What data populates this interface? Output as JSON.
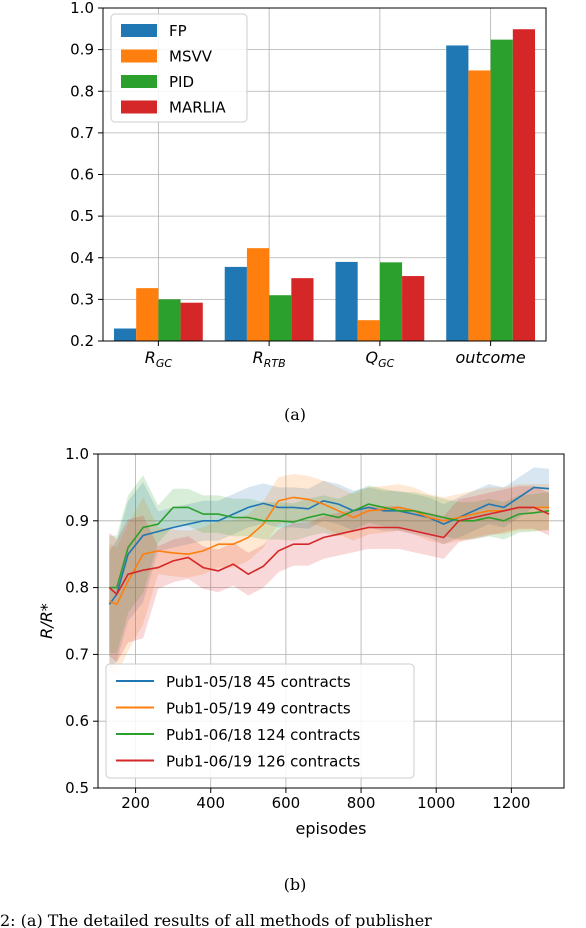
{
  "chart_data": [
    {
      "type": "bar",
      "categories": [
        "R_GC",
        "R_RTB",
        "Q_GC",
        "outcome"
      ],
      "category_labels": [
        {
          "base": "R",
          "sub": "GC"
        },
        {
          "base": "R",
          "sub": "RTB"
        },
        {
          "base": "Q",
          "sub": "GC"
        },
        {
          "base": "outcome",
          "sub": ""
        }
      ],
      "series": [
        {
          "name": "FP",
          "color": "#1f77b4",
          "values": [
            0.23,
            0.378,
            0.39,
            0.91
          ]
        },
        {
          "name": "MSVV",
          "color": "#ff7f0e",
          "values": [
            0.327,
            0.423,
            0.25,
            0.85
          ]
        },
        {
          "name": "PID",
          "color": "#2ca02c",
          "values": [
            0.3,
            0.31,
            0.389,
            0.924
          ]
        },
        {
          "name": "MARLIA",
          "color": "#d62728",
          "values": [
            0.292,
            0.351,
            0.356,
            0.949
          ]
        }
      ],
      "ylim": [
        0.2,
        1.0
      ],
      "yticks": [
        "0.2",
        "0.3",
        "0.4",
        "0.5",
        "0.6",
        "0.7",
        "0.8",
        "0.9",
        "1.0"
      ],
      "legend": "top-left",
      "grid": true,
      "caption": "(a)"
    },
    {
      "type": "line",
      "xlabel": "episodes",
      "ylabel": "R/R*",
      "xlim": [
        100,
        1340
      ],
      "ylim": [
        0.5,
        1.0
      ],
      "xticks": [
        "200",
        "400",
        "600",
        "800",
        "1000",
        "1200"
      ],
      "yticks": [
        "0.5",
        "0.6",
        "0.7",
        "0.8",
        "0.9",
        "1.0"
      ],
      "legend": "lower-left",
      "grid": true,
      "caption": "(b)",
      "series": [
        {
          "name": "Pub1-05/18 45 contracts",
          "color": "#1f77b4",
          "x": [
            130,
            150,
            180,
            220,
            260,
            300,
            340,
            380,
            420,
            460,
            500,
            540,
            580,
            620,
            660,
            700,
            740,
            780,
            820,
            860,
            900,
            940,
            980,
            1020,
            1060,
            1100,
            1140,
            1180,
            1220,
            1260,
            1300
          ],
          "y": [
            0.775,
            0.79,
            0.85,
            0.878,
            0.884,
            0.89,
            0.895,
            0.9,
            0.9,
            0.91,
            0.92,
            0.926,
            0.92,
            0.92,
            0.918,
            0.93,
            0.925,
            0.915,
            0.92,
            0.915,
            0.915,
            0.91,
            0.905,
            0.895,
            0.905,
            0.915,
            0.925,
            0.92,
            0.935,
            0.95,
            0.948
          ],
          "band": 0.03
        },
        {
          "name": "Pub1-05/19 49 contracts",
          "color": "#ff7f0e",
          "x": [
            130,
            150,
            180,
            220,
            260,
            300,
            340,
            380,
            420,
            460,
            500,
            540,
            580,
            620,
            660,
            700,
            740,
            780,
            820,
            860,
            900,
            940,
            980,
            1020,
            1060,
            1100,
            1140,
            1180,
            1220,
            1260,
            1300
          ],
          "y": [
            0.78,
            0.775,
            0.81,
            0.85,
            0.855,
            0.852,
            0.85,
            0.855,
            0.865,
            0.865,
            0.875,
            0.895,
            0.93,
            0.935,
            0.932,
            0.925,
            0.915,
            0.905,
            0.915,
            0.917,
            0.92,
            0.915,
            0.905,
            0.9,
            0.905,
            0.91,
            0.915,
            0.915,
            0.92,
            0.92,
            0.92
          ],
          "band": 0.035
        },
        {
          "name": "Pub1-06/18 124 contracts",
          "color": "#2ca02c",
          "x": [
            130,
            150,
            180,
            220,
            260,
            300,
            340,
            380,
            420,
            460,
            500,
            540,
            580,
            620,
            660,
            700,
            740,
            780,
            820,
            860,
            900,
            940,
            980,
            1020,
            1060,
            1100,
            1140,
            1180,
            1220,
            1260,
            1300
          ],
          "y": [
            0.8,
            0.8,
            0.86,
            0.89,
            0.895,
            0.92,
            0.92,
            0.91,
            0.91,
            0.905,
            0.905,
            0.9,
            0.9,
            0.898,
            0.905,
            0.91,
            0.905,
            0.915,
            0.925,
            0.92,
            0.915,
            0.915,
            0.91,
            0.905,
            0.9,
            0.9,
            0.905,
            0.9,
            0.91,
            0.912,
            0.915
          ],
          "band": 0.028
        },
        {
          "name": "Pub1-06/19 126 contracts",
          "color": "#d62728",
          "x": [
            130,
            150,
            180,
            220,
            260,
            300,
            340,
            380,
            420,
            460,
            500,
            540,
            580,
            620,
            660,
            700,
            740,
            780,
            820,
            860,
            900,
            940,
            980,
            1020,
            1060,
            1100,
            1140,
            1180,
            1220,
            1260,
            1300
          ],
          "y": [
            0.8,
            0.79,
            0.82,
            0.826,
            0.83,
            0.84,
            0.845,
            0.83,
            0.825,
            0.835,
            0.82,
            0.832,
            0.855,
            0.865,
            0.865,
            0.875,
            0.88,
            0.885,
            0.89,
            0.89,
            0.89,
            0.885,
            0.88,
            0.875,
            0.9,
            0.905,
            0.91,
            0.915,
            0.92,
            0.92,
            0.91
          ],
          "band": 0.032
        }
      ]
    }
  ],
  "caption_text": "2: (a) The detailed results of all methods of publisher"
}
